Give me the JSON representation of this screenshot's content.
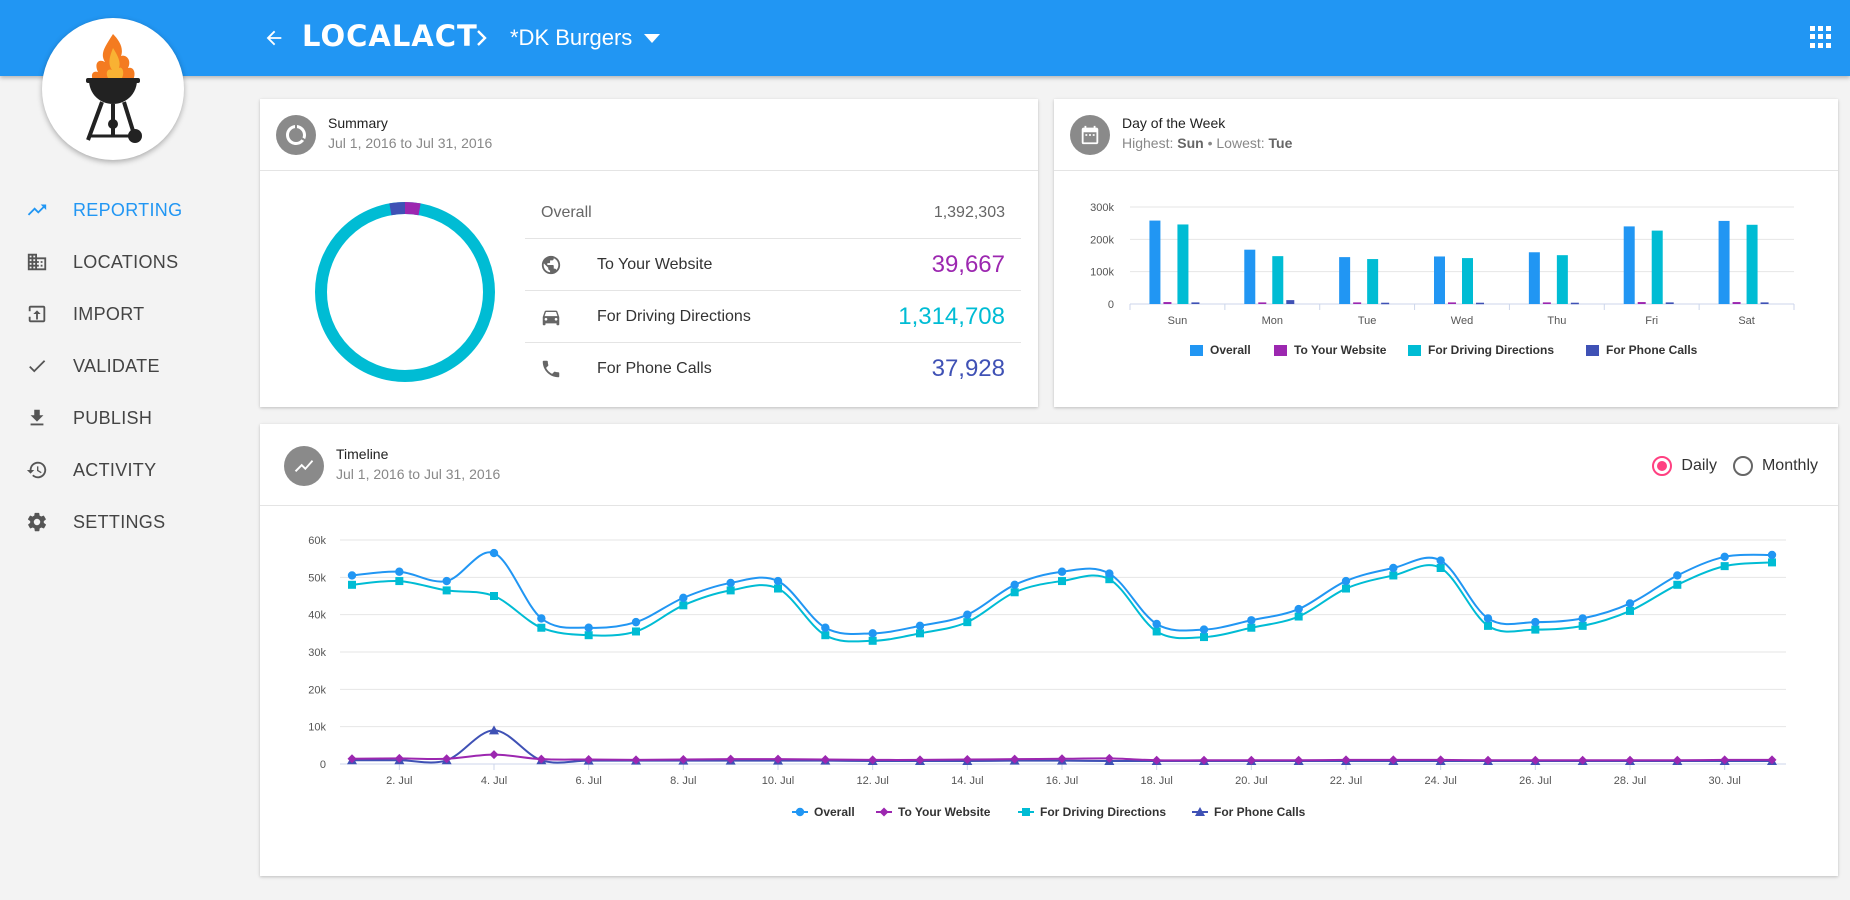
{
  "header": {
    "brand": "LOCALACT",
    "location": "*DK Burgers"
  },
  "sidebar": {
    "items": [
      {
        "label": "REPORTING",
        "icon": "trending-up-icon",
        "active": true
      },
      {
        "label": "LOCATIONS",
        "icon": "building-icon",
        "active": false
      },
      {
        "label": "IMPORT",
        "icon": "import-icon",
        "active": false
      },
      {
        "label": "VALIDATE",
        "icon": "check-icon",
        "active": false
      },
      {
        "label": "PUBLISH",
        "icon": "download-icon",
        "active": false
      },
      {
        "label": "ACTIVITY",
        "icon": "history-icon",
        "active": false
      },
      {
        "label": "SETTINGS",
        "icon": "gear-icon",
        "active": false
      }
    ]
  },
  "summary": {
    "title": "Summary",
    "range": "Jul 1, 2016 to Jul 31, 2016",
    "overall_label": "Overall",
    "overall_value": "1,392,303",
    "rows": [
      {
        "label": "To Your Website",
        "value": "39,667",
        "color": "#9c27b0",
        "icon": "globe-icon"
      },
      {
        "label": "For Driving Directions",
        "value": "1,314,708",
        "color": "#00bcd4",
        "icon": "car-icon"
      },
      {
        "label": "For Phone Calls",
        "value": "37,928",
        "color": "#3f51b5",
        "icon": "phone-icon"
      }
    ]
  },
  "week": {
    "title": "Day of the Week",
    "highest_label": "Highest:",
    "highest": "Sun",
    "sep": "•",
    "lowest_label": "Lowest:",
    "lowest": "Tue"
  },
  "timeline": {
    "title": "Timeline",
    "range": "Jul 1, 2016 to Jul 31, 2016",
    "daily_label": "Daily",
    "monthly_label": "Monthly"
  },
  "colors": {
    "primary": "#2196f3",
    "overall": "#2196f3",
    "website": "#9c27b0",
    "directions": "#00bcd4",
    "phone": "#3f51b5"
  },
  "chart_data": [
    {
      "type": "bar",
      "title": "",
      "categories": [
        "Sun",
        "Mon",
        "Tue",
        "Wed",
        "Thu",
        "Fri",
        "Sat"
      ],
      "ylim": [
        0,
        300000
      ],
      "yticks": [
        "0",
        "100k",
        "200k",
        "300k"
      ],
      "grid": true,
      "legend": "bottom",
      "series": [
        {
          "name": "Overall",
          "color": "#2196f3",
          "values": [
            258000,
            168000,
            145000,
            147000,
            160000,
            240000,
            257000
          ]
        },
        {
          "name": "To Your Website",
          "color": "#9c27b0",
          "values": [
            6000,
            5000,
            5000,
            5000,
            5000,
            6000,
            6000
          ]
        },
        {
          "name": "For Driving Directions",
          "color": "#00bcd4",
          "values": [
            246000,
            148000,
            139000,
            142000,
            151000,
            227000,
            245000
          ]
        },
        {
          "name": "For Phone Calls",
          "color": "#3f51b5",
          "values": [
            5000,
            12000,
            4000,
            4000,
            4000,
            5000,
            5000
          ]
        }
      ]
    },
    {
      "type": "line",
      "title": "",
      "x": [
        1,
        2,
        3,
        4,
        5,
        6,
        7,
        8,
        9,
        10,
        11,
        12,
        13,
        14,
        15,
        16,
        17,
        18,
        19,
        20,
        21,
        22,
        23,
        24,
        25,
        26,
        27,
        28,
        29,
        30,
        31
      ],
      "xticks": [
        "2. Jul",
        "4. Jul",
        "6. Jul",
        "8. Jul",
        "10. Jul",
        "12. Jul",
        "14. Jul",
        "16. Jul",
        "18. Jul",
        "20. Jul",
        "22. Jul",
        "24. Jul",
        "26. Jul",
        "28. Jul",
        "30. Jul"
      ],
      "ylim": [
        0,
        60000
      ],
      "yticks": [
        "0",
        "10k",
        "20k",
        "30k",
        "40k",
        "50k",
        "60k"
      ],
      "grid": true,
      "legend": "bottom",
      "series": [
        {
          "name": "Overall",
          "color": "#2196f3",
          "marker": "circle",
          "values": [
            50500,
            51500,
            49000,
            56500,
            39000,
            36500,
            38000,
            44500,
            48500,
            49000,
            36500,
            35000,
            37000,
            40000,
            48000,
            51500,
            51000,
            37500,
            36000,
            38500,
            41500,
            49000,
            52500,
            54500,
            39000,
            38000,
            39000,
            43000,
            50500,
            55500,
            56000
          ]
        },
        {
          "name": "To Your Website",
          "color": "#9c27b0",
          "marker": "diamond",
          "values": [
            1400,
            1500,
            1400,
            2500,
            1300,
            1200,
            1100,
            1200,
            1300,
            1300,
            1200,
            1100,
            1100,
            1200,
            1300,
            1400,
            1500,
            1000,
            1000,
            1000,
            1000,
            1100,
            1100,
            1100,
            1000,
            1000,
            1000,
            1000,
            1000,
            1100,
            1100
          ]
        },
        {
          "name": "For Driving Directions",
          "color": "#00bcd4",
          "marker": "square",
          "values": [
            48000,
            49000,
            46500,
            45000,
            36500,
            34500,
            35500,
            42500,
            46500,
            47000,
            34500,
            33000,
            35000,
            38000,
            46000,
            49000,
            49500,
            35500,
            34000,
            36500,
            39500,
            47000,
            50500,
            52500,
            37000,
            36000,
            37000,
            41000,
            48000,
            53000,
            54000
          ]
        },
        {
          "name": "For Phone Calls",
          "color": "#3f51b5",
          "marker": "triangle",
          "values": [
            1000,
            1000,
            1000,
            9000,
            1000,
            900,
            900,
            900,
            900,
            900,
            900,
            800,
            800,
            800,
            900,
            900,
            800,
            800,
            800,
            800,
            800,
            800,
            800,
            800,
            800,
            800,
            800,
            800,
            800,
            800,
            800
          ]
        }
      ]
    }
  ]
}
